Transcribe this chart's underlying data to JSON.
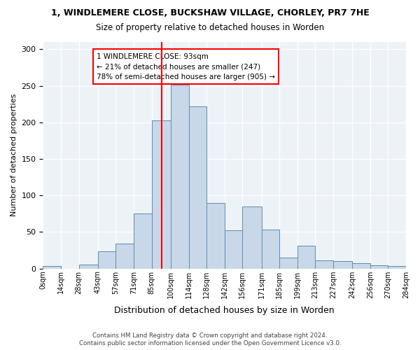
{
  "title1": "1, WINDLEMERE CLOSE, BUCKSHAW VILLAGE, CHORLEY, PR7 7HE",
  "title2": "Size of property relative to detached houses in Worden",
  "xlabel": "Distribution of detached houses by size in Worden",
  "ylabel": "Number of detached properties",
  "bin_labels": [
    "0sqm",
    "14sqm",
    "28sqm",
    "43sqm",
    "57sqm",
    "71sqm",
    "85sqm",
    "100sqm",
    "114sqm",
    "128sqm",
    "142sqm",
    "156sqm",
    "171sqm",
    "185sqm",
    "199sqm",
    "213sqm",
    "227sqm",
    "242sqm",
    "256sqm",
    "270sqm",
    "284sqm"
  ],
  "bar_heights": [
    3,
    0,
    5,
    24,
    34,
    75,
    203,
    252,
    222,
    90,
    52,
    85,
    53,
    15,
    31,
    11,
    10,
    7,
    4,
    3
  ],
  "bin_edges": [
    0,
    14,
    28,
    43,
    57,
    71,
    85,
    100,
    114,
    128,
    142,
    156,
    171,
    185,
    199,
    213,
    227,
    242,
    256,
    270,
    284
  ],
  "bar_color": "#c8d8e8",
  "bar_edge_color": "#5b8db0",
  "property_value": 93,
  "red_line_x": 93,
  "annotation_text": "1 WINDLEMERE CLOSE: 93sqm\n← 21% of detached houses are smaller (247)\n78% of semi-detached houses are larger (905) →",
  "footer1": "Contains HM Land Registry data © Crown copyright and database right 2024.",
  "footer2": "Contains public sector information licensed under the Open Government Licence v3.0.",
  "ylim": [
    0,
    310
  ],
  "yticks": [
    0,
    50,
    100,
    150,
    200,
    250,
    300
  ],
  "background_color": "#edf2f7"
}
